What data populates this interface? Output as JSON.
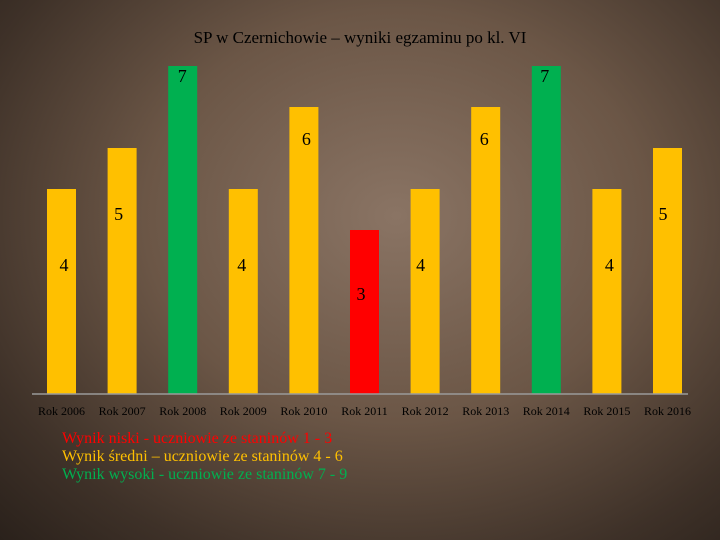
{
  "chart_data": {
    "type": "bar",
    "title": "SP w Czernichowie – wyniki egzaminu po kl. VI",
    "categories": [
      "Rok 2006",
      "Rok 2007",
      "Rok 2008",
      "Rok 2009",
      "Rok 2010",
      "Rok 2011",
      "Rok 2012",
      "Rok 2013",
      "Rok 2014",
      "Rok 2015",
      "Rok 2016"
    ],
    "values": [
      4,
      5,
      7,
      4,
      6,
      3,
      4,
      6,
      7,
      4,
      5
    ],
    "ylim": [
      0,
      7
    ],
    "grid": false,
    "colors": {
      "low": "#ff0000",
      "medium": "#ffc000",
      "high": "#00b050"
    },
    "bar_levels": [
      "medium",
      "medium",
      "high",
      "medium",
      "medium",
      "low",
      "medium",
      "medium",
      "high",
      "medium",
      "medium"
    ]
  },
  "legend": {
    "low": "Wynik niski - uczniowie ze staninów 1 - 3",
    "medium": "Wynik średni – uczniowie ze staninów 4 - 6",
    "high": "Wynik wysoki - uczniowie ze staninów 7 - 9"
  }
}
